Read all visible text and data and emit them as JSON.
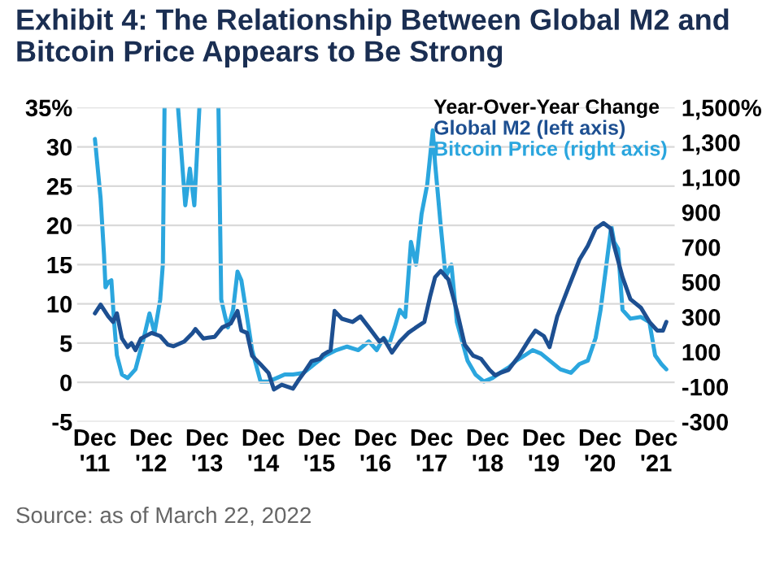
{
  "chart_data": {
    "type": "line",
    "title": "Exhibit 4: The Relationship Between Global M2 and Bitcoin Price Appears to Be Strong",
    "legend_title": "Year-Over-Year Change",
    "x": [
      "2011-12-02",
      "2012-01-08",
      "2012-02-27",
      "2012-03-29",
      "2012-04-23",
      "2012-05-26",
      "2012-07-02",
      "2012-07-27",
      "2012-08-22",
      "2012-09-27",
      "2012-12-05",
      "2013-01-30",
      "2013-03-21",
      "2013-04-27",
      "2013-07-05",
      "2013-08-29",
      "2013-09-16",
      "2013-11-06",
      "2014-01-19",
      "2014-03-10",
      "2014-05-04",
      "2014-06-17",
      "2014-07-12",
      "2014-08-18",
      "2014-09-20",
      "2014-11-14",
      "2015-01-05",
      "2015-02-09",
      "2015-04-01",
      "2015-06-13",
      "2015-07-16",
      "2015-08-22",
      "2015-10-12",
      "2015-12-05",
      "2015-12-24",
      "2016-02-13",
      "2016-03-10",
      "2016-04-27",
      "2016-07-05",
      "2016-08-25",
      "2016-10-19",
      "2016-12-27",
      "2017-01-23",
      "2017-03-18",
      "2017-05-08",
      "2017-07-02",
      "2017-08-22",
      "2017-10-15",
      "2017-11-21",
      "2017-12-24",
      "2018-01-30",
      "2018-03-21",
      "2018-05-15",
      "2018-07-05",
      "2018-08-29",
      "2018-10-19",
      "2018-12-13",
      "2019-01-19",
      "2019-02-20",
      "2019-04-16",
      "2019-06-24",
      "2019-09-02",
      "2019-10-08",
      "2019-12-02",
      "2020-01-08",
      "2020-02-27",
      "2020-05-08",
      "2020-07-20",
      "2020-09-13",
      "2020-11-03",
      "2020-12-24",
      "2021-02-09",
      "2021-03-03",
      "2021-04-27",
      "2021-06-17",
      "2021-08-25",
      "2021-10-19",
      "2021-12-09",
      "2022-01-15",
      "2022-02-06"
    ],
    "series": [
      {
        "name": "Global M2 (left axis)",
        "color": "#1d4f91",
        "values": [
          8.8,
          9.9,
          8.4,
          7.7,
          8.8,
          5.6,
          4.5,
          5.0,
          4.1,
          5.6,
          6.3,
          5.9,
          4.8,
          4.6,
          5.2,
          6.3,
          6.8,
          5.6,
          5.8,
          7.0,
          7.5,
          9.1,
          6.6,
          6.3,
          3.4,
          2.3,
          1.2,
          -0.9,
          -0.3,
          -0.8,
          0.2,
          1.2,
          2.7,
          3.0,
          3.5,
          4.1,
          9.1,
          8.1,
          7.7,
          8.4,
          7.0,
          5.2,
          5.6,
          3.8,
          5.2,
          6.3,
          7.0,
          7.7,
          10.9,
          13.4,
          14.2,
          13.1,
          9.1,
          4.8,
          3.4,
          3.0,
          1.6,
          0.9,
          1.2,
          1.6,
          3.4,
          5.6,
          6.6,
          5.9,
          4.5,
          8.4,
          12.0,
          15.6,
          17.4,
          19.6,
          20.3,
          19.6,
          17.4,
          13.4,
          10.6,
          9.5,
          7.7,
          6.6,
          6.6,
          7.7
        ]
      },
      {
        "name": "Bitcoin Price (right axis)",
        "color": "#2ba6de",
        "axis": "y2",
        "x": [
          "2011-12-02",
          "2012-01-08",
          "2012-01-30",
          "2012-02-09",
          "2012-02-27",
          "2012-03-18",
          "2012-04-05",
          "2012-04-23",
          "2012-05-26",
          "2012-07-02",
          "2012-08-22",
          "2012-10-15",
          "2012-11-21",
          "2012-12-24",
          "2013-01-30",
          "2013-02-16",
          "2013-02-27",
          "2013-04-12",
          "2013-05-26",
          "2013-07-12",
          "2013-08-11",
          "2013-09-09",
          "2013-10-12",
          "2013-12-13",
          "2014-02-13",
          "2014-03-03",
          "2014-03-29",
          "2014-04-16",
          "2014-05-19",
          "2014-06-17",
          "2014-07-12",
          "2014-08-18",
          "2014-09-20",
          "2014-11-14",
          "2015-01-05",
          "2015-02-27",
          "2015-04-20",
          "2015-06-13",
          "2015-08-22",
          "2015-10-30",
          "2016-01-12",
          "2016-03-21",
          "2016-05-30",
          "2016-08-11",
          "2016-10-19",
          "2016-12-09",
          "2017-01-23",
          "2017-02-27",
          "2017-04-05",
          "2017-05-08",
          "2017-06-13",
          "2017-07-20",
          "2017-08-22",
          "2017-09-27",
          "2017-11-03",
          "2017-12-09",
          "2017-12-24",
          "2018-01-30",
          "2018-03-03",
          "2018-04-09",
          "2018-05-15",
          "2018-07-23",
          "2018-09-13",
          "2018-11-06",
          "2019-01-01",
          "2019-02-20",
          "2019-04-16",
          "2019-06-06",
          "2019-07-31",
          "2019-09-20",
          "2019-11-14",
          "2020-01-08",
          "2020-03-18",
          "2020-05-26",
          "2020-07-20",
          "2020-09-13",
          "2020-11-03",
          "2020-12-05",
          "2021-01-12",
          "2021-02-13",
          "2021-03-03",
          "2021-03-29",
          "2021-04-27",
          "2021-06-17",
          "2021-08-25",
          "2021-10-19",
          "2021-11-25",
          "2022-01-05",
          "2022-02-06"
        ],
        "values": [
          1320,
          980,
          660,
          470,
          500,
          510,
          270,
          80,
          -30,
          -50,
          0,
          180,
          320,
          210,
          400,
          600,
          1500,
          null,
          1500,
          940,
          1150,
          940,
          1500,
          null,
          1500,
          400,
          300,
          240,
          340,
          560,
          510,
          300,
          110,
          -70,
          -70,
          -50,
          -30,
          -30,
          -20,
          30,
          80,
          110,
          130,
          110,
          160,
          110,
          180,
          140,
          240,
          340,
          300,
          730,
          600,
          890,
          1060,
          1370,
          1180,
          820,
          530,
          600,
          270,
          50,
          -30,
          -70,
          -50,
          -20,
          10,
          50,
          80,
          110,
          90,
          50,
          0,
          -20,
          30,
          50,
          180,
          340,
          600,
          820,
          730,
          690,
          340,
          290,
          300,
          270,
          80,
          30,
          0
        ]
      }
    ],
    "xticks": [
      {
        "value": "2011-12-01",
        "label": "Dec\n'11"
      },
      {
        "value": "2012-12-01",
        "label": "Dec\n'12"
      },
      {
        "value": "2013-12-01",
        "label": "Dec\n'13"
      },
      {
        "value": "2014-12-01",
        "label": "Dec\n'14"
      },
      {
        "value": "2015-12-01",
        "label": "Dec\n'15"
      },
      {
        "value": "2016-12-01",
        "label": "Dec\n'16"
      },
      {
        "value": "2017-12-01",
        "label": "Dec\n'17"
      },
      {
        "value": "2018-12-01",
        "label": "Dec\n'18"
      },
      {
        "value": "2019-12-01",
        "label": "Dec\n'19"
      },
      {
        "value": "2020-12-01",
        "label": "Dec\n'20"
      },
      {
        "value": "2021-12-01",
        "label": "Dec\n'21"
      }
    ],
    "xlim": [
      "2011-08-08",
      "2022-04-01"
    ],
    "ylim": [
      -5,
      35
    ],
    "yticks": [
      -5,
      0,
      5,
      10,
      15,
      20,
      25,
      30,
      {
        "value": 35,
        "label": "35%"
      }
    ],
    "y2lim": [
      -300,
      1500
    ],
    "y2ticks": [
      -300,
      -100,
      100,
      300,
      500,
      700,
      900,
      {
        "value": 1100,
        "label": "1,100"
      },
      {
        "value": 1300,
        "label": "1,300"
      },
      {
        "value": 1500,
        "label": "1,500%"
      }
    ],
    "grid": "y",
    "legend": "top right",
    "marker": "none",
    "line_style": "solid",
    "annotations": [
      "Source: as of March 22, 2022"
    ]
  }
}
